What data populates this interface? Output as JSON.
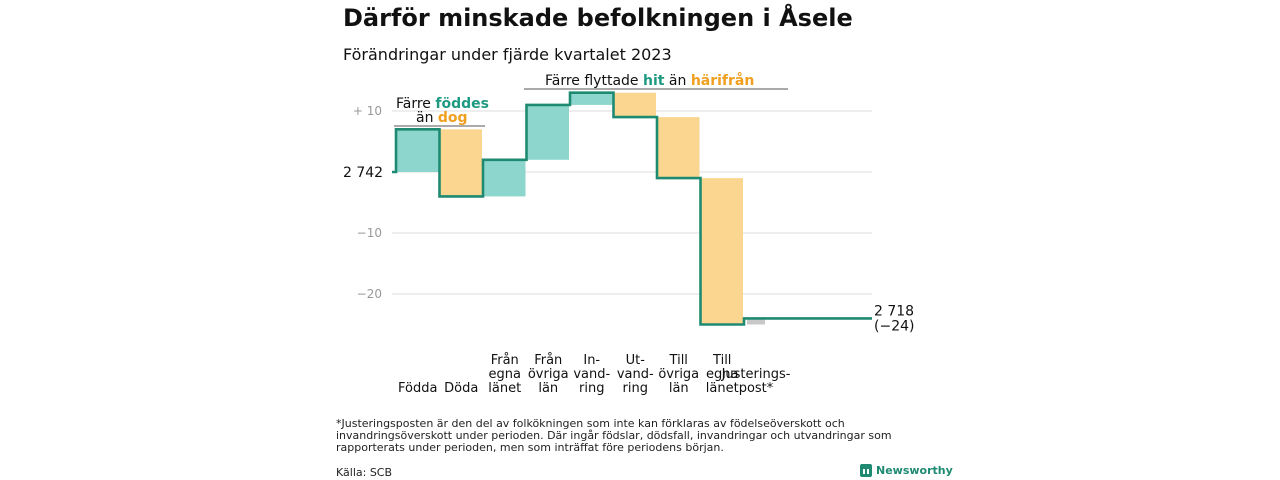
{
  "header": {
    "title": "Därför minskade befolkningen i Åsele",
    "subtitle": "Förändringar under fjärde kvartalet 2023"
  },
  "chart_data": {
    "type": "waterfall",
    "start_value": 2742,
    "end_value": 2718,
    "start_label": "2 742",
    "end_label": "2 718",
    "end_change_label": "(−24)",
    "steps": [
      {
        "id": "fodda",
        "label_lines": [
          "Födda"
        ],
        "value": 7,
        "color": "teal"
      },
      {
        "id": "doda",
        "label_lines": [
          "Döda"
        ],
        "value": -11,
        "color": "orange"
      },
      {
        "id": "fran-egna",
        "label_lines": [
          "Från",
          "egna",
          "länet"
        ],
        "value": 6,
        "color": "teal"
      },
      {
        "id": "fran-ovriga",
        "label_lines": [
          "Från",
          "övriga",
          "län"
        ],
        "value": 9,
        "color": "teal"
      },
      {
        "id": "invandring",
        "label_lines": [
          "In-",
          "vand-",
          "ring"
        ],
        "value": 2,
        "color": "teal"
      },
      {
        "id": "utvandring",
        "label_lines": [
          "Ut-",
          "vand-",
          "ring"
        ],
        "value": -4,
        "color": "orange"
      },
      {
        "id": "till-ovriga",
        "label_lines": [
          "Till",
          "övriga",
          "län"
        ],
        "value": -10,
        "color": "orange"
      },
      {
        "id": "till-egna",
        "label_lines": [
          "Till",
          "egna",
          "länet"
        ],
        "value": -24,
        "color": "orange"
      },
      {
        "id": "justering",
        "label_lines": [
          "Justerings-",
          "post*"
        ],
        "value": 1,
        "color": "gray"
      }
    ],
    "y_ticks": [
      {
        "value": 10,
        "label": "+ 10"
      },
      {
        "value": -10,
        "label": "−10"
      },
      {
        "value": -20,
        "label": "−20"
      }
    ],
    "ylim": [
      -27,
      14
    ],
    "grid": true,
    "annotations": {
      "births": {
        "line1": "Färre",
        "hl1": "föddes",
        "line2": "än",
        "hl2": "dog"
      },
      "migration": {
        "prefix": "Färre flyttade",
        "hl1": "hit",
        "mid": "än",
        "hl2": "härifrån"
      }
    },
    "colors": {
      "teal": "#8dd6cd",
      "orange": "#fbd690",
      "gray": "#c8c8c8",
      "line": "#1f8a72",
      "teal_text": "#1f9a82",
      "orange_text": "#f0a020",
      "grid": "#dddddd",
      "tick_text": "#999999"
    }
  },
  "footer": {
    "note": "*Justeringsposten är den del av folkökningen som inte kan förklaras av födelseöverskott och invandringsöverskott under perioden. Där ingår födslar, dödsfall, invandringar och utvandringar som rapporterats under perioden, men som inträffat före periodens början.",
    "source": "Källa: SCB",
    "brand": "Newsworthy"
  }
}
